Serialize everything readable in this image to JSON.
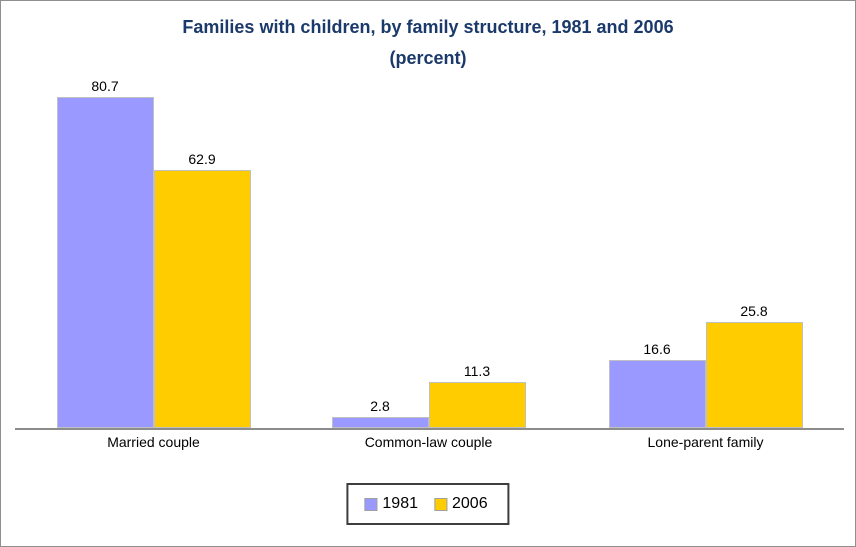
{
  "chart": {
    "title_line1": "Families with children, by family structure, 1981 and 2006",
    "title_line2": "(percent)"
  },
  "chart_data": {
    "type": "bar",
    "title": "Families with children, by family structure, 1981 and 2006 (percent)",
    "categories": [
      "Married couple",
      "Common-law couple",
      "Lone-parent family"
    ],
    "series": [
      {
        "name": "1981",
        "color": "#9999FF",
        "values": [
          80.7,
          2.8,
          16.6
        ]
      },
      {
        "name": "2006",
        "color": "#FFCC00",
        "values": [
          62.9,
          11.3,
          25.8
        ]
      }
    ],
    "value_labels": [
      [
        "80.7",
        "2.8",
        "16.6"
      ],
      [
        "62.9",
        "11.3",
        "25.8"
      ]
    ],
    "xlabel": "",
    "ylabel": "",
    "ylim": [
      0,
      100
    ],
    "grid": false,
    "axis_visible": "x-only",
    "data_labels": true,
    "legend_position": "bottom"
  },
  "colors": {
    "title_text": "#1B3A6B",
    "label_text": "#000000",
    "axis_line": "#8C8C8C",
    "bar_outline": "#C0C0C0",
    "frame_border": "#8F8F8F",
    "legend_border": "#3D3D3D",
    "background": "#FFFFFF"
  }
}
